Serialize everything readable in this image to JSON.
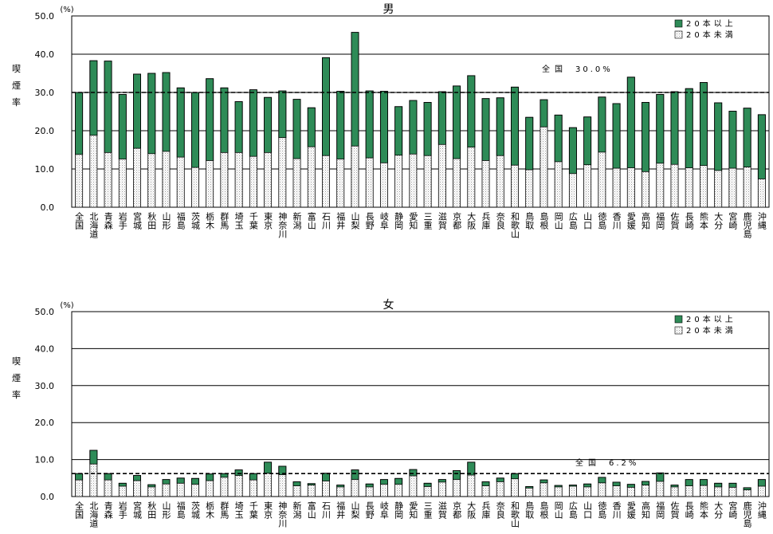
{
  "chart_data": [
    {
      "type": "bar",
      "stacked": true,
      "title": "男",
      "ylabel": "喫煙率",
      "unit": "(%)",
      "ylim": [
        0,
        50
      ],
      "yticks": [
        "0.0",
        "10.0",
        "20.0",
        "30.0",
        "40.0",
        "50.0"
      ],
      "grid": true,
      "legend_position": "top-right",
      "reference": {
        "label": "全国",
        "value_text": "30.0%",
        "value": 30.0
      },
      "categories": [
        "全国",
        "北海道",
        "青森",
        "岩手",
        "宮城",
        "秋田",
        "山形",
        "福島",
        "茨城",
        "栃木",
        "群馬",
        "埼玉",
        "千葉",
        "東京",
        "神奈川",
        "新潟",
        "富山",
        "石川",
        "福井",
        "山梨",
        "長野",
        "岐阜",
        "静岡",
        "愛知",
        "三重",
        "滋賀",
        "京都",
        "大阪",
        "兵庫",
        "奈良",
        "和歌山",
        "鳥取",
        "島根",
        "岡山",
        "広島",
        "山口",
        "徳島",
        "香川",
        "愛媛",
        "高知",
        "福岡",
        "佐賀",
        "長崎",
        "熊本",
        "大分",
        "宮崎",
        "鹿児島",
        "沖縄"
      ],
      "series": [
        {
          "name": "20本未満",
          "values": [
            13.8,
            18.8,
            14.3,
            12.6,
            15.4,
            14.0,
            14.6,
            13.1,
            10.4,
            12.2,
            14.3,
            14.3,
            13.3,
            14.3,
            18.2,
            12.7,
            15.8,
            13.5,
            12.6,
            16.0,
            12.9,
            11.6,
            13.6,
            13.9,
            13.5,
            16.4,
            12.7,
            15.7,
            12.2,
            13.5,
            11.0,
            9.8,
            21.0,
            11.9,
            8.8,
            11.1,
            14.4,
            10.2,
            10.3,
            9.3,
            11.5,
            11.2,
            10.3,
            10.9,
            9.6,
            10.2,
            10.5,
            7.4
          ]
        },
        {
          "name": "20本以上",
          "values": [
            16.2,
            19.5,
            23.9,
            16.9,
            19.4,
            21.0,
            20.6,
            18.1,
            19.6,
            21.4,
            16.9,
            13.3,
            17.4,
            14.4,
            12.2,
            15.5,
            10.2,
            25.6,
            17.7,
            29.7,
            17.5,
            18.7,
            12.7,
            14.0,
            13.9,
            13.8,
            19.0,
            18.7,
            16.2,
            15.1,
            20.4,
            13.7,
            7.1,
            12.2,
            12.0,
            12.5,
            14.4,
            16.9,
            23.7,
            18.1,
            18.0,
            19.0,
            20.7,
            21.7,
            17.7,
            14.9,
            15.4,
            16.8
          ]
        }
      ]
    },
    {
      "type": "bar",
      "stacked": true,
      "title": "女",
      "ylabel": "喫煙率",
      "unit": "(%)",
      "ylim": [
        0,
        50
      ],
      "yticks": [
        "0.0",
        "10.0",
        "20.0",
        "30.0",
        "40.0",
        "50.0"
      ],
      "grid": true,
      "legend_position": "top-right",
      "reference": {
        "label": "全国",
        "value_text": "6.2%",
        "value": 6.2
      },
      "categories": [
        "全国",
        "北海道",
        "青森",
        "岩手",
        "宮城",
        "秋田",
        "山形",
        "福島",
        "茨城",
        "栃木",
        "群馬",
        "埼玉",
        "千葉",
        "東京",
        "神奈川",
        "新潟",
        "富山",
        "石川",
        "福井",
        "山梨",
        "長野",
        "岐阜",
        "静岡",
        "愛知",
        "三重",
        "滋賀",
        "京都",
        "大阪",
        "兵庫",
        "奈良",
        "和歌山",
        "鳥取",
        "島根",
        "岡山",
        "広島",
        "山口",
        "徳島",
        "香川",
        "愛媛",
        "高知",
        "福岡",
        "佐賀",
        "長崎",
        "熊本",
        "大分",
        "宮崎",
        "鹿児島",
        "沖縄"
      ],
      "series": [
        {
          "name": "20本未満",
          "values": [
            4.5,
            8.8,
            4.5,
            2.8,
            4.3,
            2.6,
            3.4,
            3.6,
            3.3,
            4.3,
            5.2,
            5.7,
            4.5,
            6.3,
            5.9,
            2.9,
            3.1,
            4.2,
            2.6,
            4.6,
            2.6,
            3.3,
            3.3,
            5.6,
            2.7,
            3.9,
            4.6,
            5.8,
            2.9,
            4.0,
            4.8,
            2.3,
            3.7,
            2.6,
            2.8,
            2.6,
            3.7,
            2.9,
            2.5,
            3.1,
            4.1,
            2.6,
            2.9,
            3.0,
            2.6,
            2.5,
            1.8,
            2.8
          ]
        },
        {
          "name": "20本以上",
          "values": [
            1.7,
            3.7,
            1.7,
            0.8,
            1.4,
            0.6,
            1.2,
            1.4,
            1.6,
            1.8,
            1.0,
            1.5,
            1.7,
            3.0,
            2.3,
            1.1,
            0.4,
            2.1,
            0.5,
            2.6,
            0.8,
            1.3,
            1.6,
            1.7,
            0.9,
            0.7,
            2.4,
            3.5,
            1.1,
            1.0,
            1.4,
            0.4,
            0.8,
            0.4,
            0.3,
            0.8,
            1.5,
            1.0,
            0.8,
            1.0,
            2.3,
            0.5,
            1.7,
            1.6,
            1.0,
            1.1,
            0.6,
            1.8
          ]
        }
      ]
    }
  ],
  "colors": {
    "upper": "#2e8b57",
    "lower_base": "#ffffff",
    "lower_dots": "#b0b0b0",
    "grid": "#000000",
    "ref_line": "#000000"
  }
}
